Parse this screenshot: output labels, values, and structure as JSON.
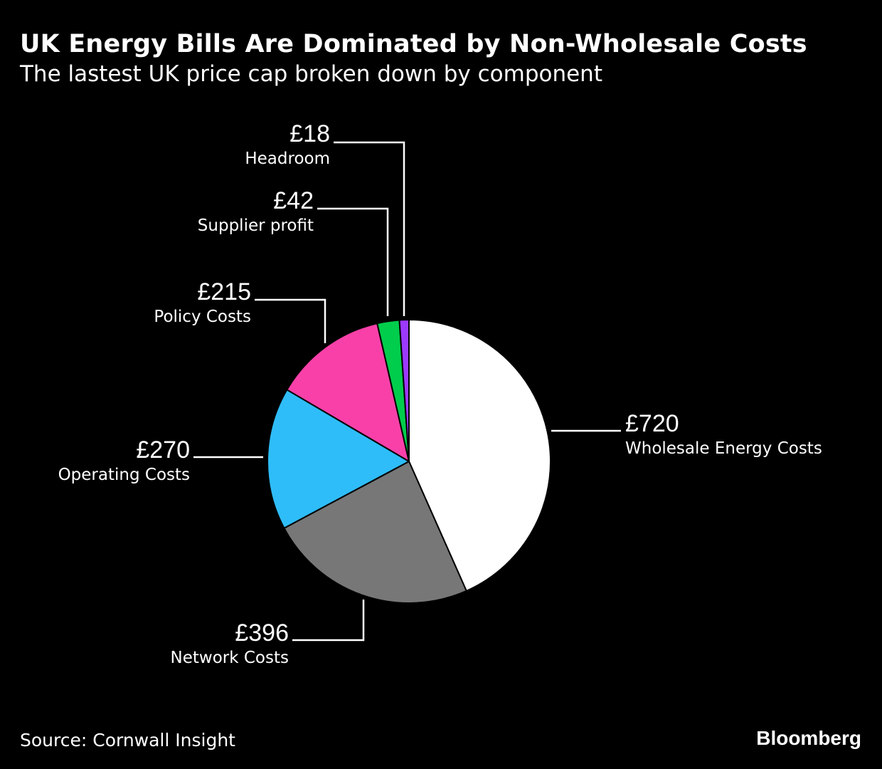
{
  "header": {
    "title": "UK Energy Bills Are Dominated by Non-Wholesale Costs",
    "subtitle": "The lastest UK price cap broken down by component"
  },
  "footer": {
    "source": "Source: Cornwall Insight",
    "brand": "Bloomberg"
  },
  "chart_data": {
    "type": "pie",
    "title": "UK Energy Bills Are Dominated by Non-Wholesale Costs",
    "subtitle": "The lastest UK price cap broken down by component",
    "start_angle": "12 o'clock",
    "direction": "clockwise",
    "slices": [
      {
        "id": "wholesale",
        "label": "Wholesale Energy Costs",
        "value": 720,
        "value_label": "£720",
        "color": "#ffffff"
      },
      {
        "id": "network",
        "label": "Network Costs",
        "value": 396,
        "value_label": "£396",
        "color": "#777777"
      },
      {
        "id": "operating",
        "label": "Operating Costs",
        "value": 270,
        "value_label": "£270",
        "color": "#2ebdf9"
      },
      {
        "id": "policy",
        "label": "Policy Costs",
        "value": 215,
        "value_label": "£215",
        "color": "#f940a9"
      },
      {
        "id": "profit",
        "label": "Supplier profit",
        "value": 42,
        "value_label": "£42",
        "color": "#00cd4c"
      },
      {
        "id": "headroom",
        "label": "Headroom",
        "value": 18,
        "value_label": "£18",
        "color": "#9c39ff"
      }
    ]
  }
}
